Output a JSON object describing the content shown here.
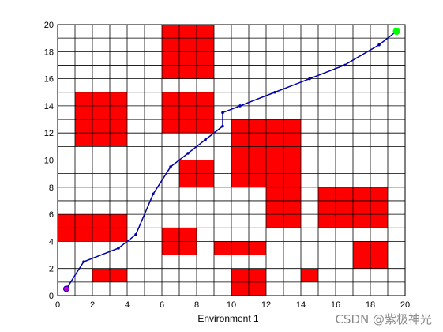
{
  "chart_data": {
    "type": "grid-path",
    "xlabel": "Environment 1",
    "ylabel": "",
    "title": "",
    "xlim": [
      0,
      20
    ],
    "ylim": [
      0,
      20
    ],
    "grid": true,
    "x_ticks": [
      0,
      2,
      4,
      6,
      8,
      10,
      12,
      14,
      16,
      18,
      20
    ],
    "y_ticks": [
      0,
      2,
      4,
      6,
      8,
      10,
      12,
      14,
      16,
      18,
      20
    ],
    "obstacles": [
      [
        0,
        4,
        4,
        2
      ],
      [
        2,
        1,
        2,
        1
      ],
      [
        1,
        11,
        3,
        4
      ],
      [
        6,
        3,
        2,
        2
      ],
      [
        6,
        12,
        3,
        3
      ],
      [
        6,
        16,
        3,
        4
      ],
      [
        7,
        8,
        2,
        2
      ],
      [
        9,
        3,
        2,
        1
      ],
      [
        10,
        0,
        2,
        2
      ],
      [
        11,
        3,
        1,
        1
      ],
      [
        10,
        8,
        4,
        5
      ],
      [
        12,
        5,
        2,
        3
      ],
      [
        14,
        1,
        1,
        1
      ],
      [
        15,
        5,
        4,
        3
      ],
      [
        17,
        2,
        2,
        2
      ]
    ],
    "path": {
      "x": [
        0.5,
        1.5,
        3.5,
        4.5,
        5.5,
        6.5,
        7.5,
        8.5,
        9.5,
        9.5,
        10.5,
        12.5,
        14.5,
        16.5,
        18.5,
        19.5
      ],
      "y": [
        0.5,
        2.5,
        3.5,
        4.5,
        7.5,
        9.5,
        10.5,
        11.5,
        12.5,
        13.5,
        14.0,
        15.0,
        16.0,
        17.0,
        18.5,
        19.5
      ]
    },
    "start": [
      0.5,
      0.5
    ],
    "goal": [
      19.5,
      19.5
    ],
    "colors": {
      "obstacle": "#ff0000",
      "path": "#0000aa",
      "start": "#cc00cc",
      "goal": "#00ff00",
      "grid": "#000000"
    }
  },
  "watermark": "CSDN @紫极神光"
}
